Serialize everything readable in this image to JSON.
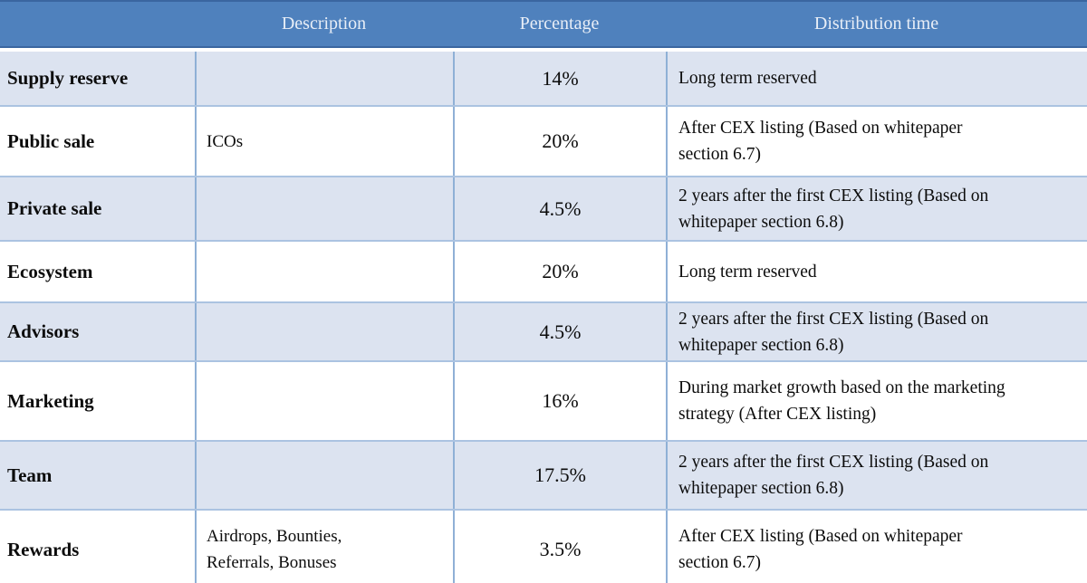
{
  "table": {
    "columns": [
      {
        "label": ""
      },
      {
        "label": "Description"
      },
      {
        "label": "Percentage"
      },
      {
        "label": "Distribution time"
      }
    ],
    "rows": [
      {
        "category": "Supply reserve",
        "description": "",
        "percentage": "14%",
        "distribution_time": "Long term reserved"
      },
      {
        "category": "Public sale",
        "description": "ICOs",
        "percentage": "20%",
        "distribution_time": "After CEX listing (Based on whitepaper\nsection 6.7)"
      },
      {
        "category": "Private sale",
        "description": "",
        "percentage": "4.5%",
        "distribution_time": "2 years after the first CEX listing (Based on\nwhitepaper section 6.8)"
      },
      {
        "category": "Ecosystem",
        "description": "",
        "percentage": "20%",
        "distribution_time": "Long term reserved"
      },
      {
        "category": "Advisors",
        "description": "",
        "percentage": "4.5%",
        "distribution_time": "2 years after the first CEX listing (Based on\nwhitepaper section 6.8)"
      },
      {
        "category": "Marketing",
        "description": "",
        "percentage": "16%",
        "distribution_time": "During market growth based on the marketing\nstrategy (After CEX listing)"
      },
      {
        "category": "Team",
        "description": "",
        "percentage": "17.5%",
        "distribution_time": "2 years after the first CEX listing (Based on\nwhitepaper section 6.8)"
      },
      {
        "category": "Rewards",
        "description": "Airdrops, Bounties,\nReferrals, Bonuses",
        "percentage": "3.5%",
        "distribution_time": "After CEX listing (Based on whitepaper\nsection 6.7)"
      }
    ],
    "colors": {
      "header_bg": "#4f81bd",
      "header_text": "#e8eef7",
      "header_line": "#3a66a0",
      "band_bg": "#dce3f0",
      "white_row_bg": "#ffffff",
      "column_border": "#8fb0d6",
      "row_border": "#abc3e1",
      "body_text": "#0c0c0c"
    }
  }
}
